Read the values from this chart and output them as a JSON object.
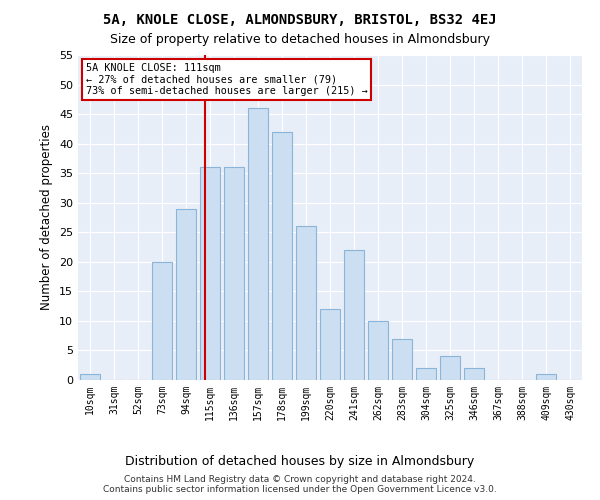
{
  "title1": "5A, KNOLE CLOSE, ALMONDSBURY, BRISTOL, BS32 4EJ",
  "title2": "Size of property relative to detached houses in Almondsbury",
  "xlabel": "Distribution of detached houses by size in Almondsbury",
  "ylabel": "Number of detached properties",
  "categories": [
    "10sqm",
    "31sqm",
    "52sqm",
    "73sqm",
    "94sqm",
    "115sqm",
    "136sqm",
    "157sqm",
    "178sqm",
    "199sqm",
    "220sqm",
    "241sqm",
    "262sqm",
    "283sqm",
    "304sqm",
    "325sqm",
    "346sqm",
    "367sqm",
    "388sqm",
    "409sqm",
    "430sqm"
  ],
  "values": [
    1,
    0,
    0,
    20,
    29,
    36,
    36,
    46,
    42,
    26,
    12,
    22,
    10,
    7,
    2,
    4,
    2,
    0,
    0,
    1,
    0
  ],
  "bar_face_color": "#ccdff2",
  "bar_edge_color": "#8ab4d8",
  "vline_color": "#cc0000",
  "annotation_title": "5A KNOLE CLOSE: 111sqm",
  "annotation_line1": "← 27% of detached houses are smaller (79)",
  "annotation_line2": "73% of semi-detached houses are larger (215) →",
  "anno_box_edge": "#cc0000",
  "ylim_max": 55,
  "yticks": [
    0,
    5,
    10,
    15,
    20,
    25,
    30,
    35,
    40,
    45,
    50,
    55
  ],
  "bg_color": "#e8eef8",
  "grid_color": "#ffffff",
  "footer1": "Contains HM Land Registry data © Crown copyright and database right 2024.",
  "footer2": "Contains public sector information licensed under the Open Government Licence v3.0."
}
